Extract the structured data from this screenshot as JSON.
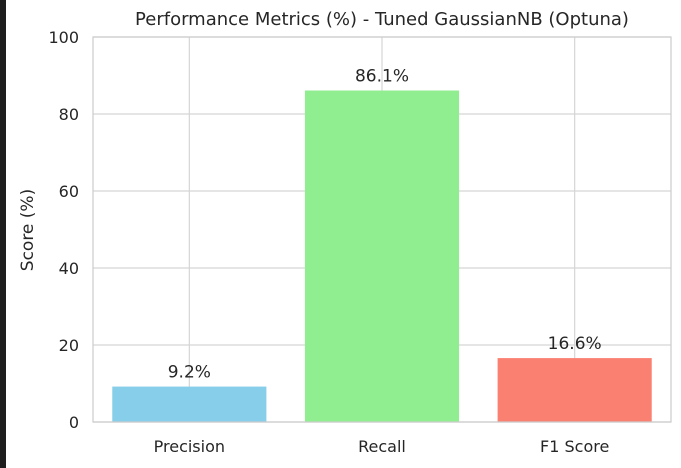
{
  "chart_data": {
    "type": "bar",
    "title": "Performance Metrics (%) - Tuned GaussianNB (Optuna)",
    "xlabel": "",
    "ylabel": "Score (%)",
    "categories": [
      "Precision",
      "Recall",
      "F1 Score"
    ],
    "values": [
      9.2,
      86.1,
      16.6
    ],
    "value_labels": [
      "9.2%",
      "86.1%",
      "16.6%"
    ],
    "colors": [
      "#87ceeb",
      "#90ee90",
      "#fa8072"
    ],
    "ylim": [
      0,
      100
    ],
    "yticks": [
      0,
      20,
      40,
      60,
      80,
      100
    ],
    "ytick_labels": [
      "0",
      "20",
      "40",
      "60",
      "80",
      "100"
    ],
    "grid": true,
    "legend": "none"
  }
}
